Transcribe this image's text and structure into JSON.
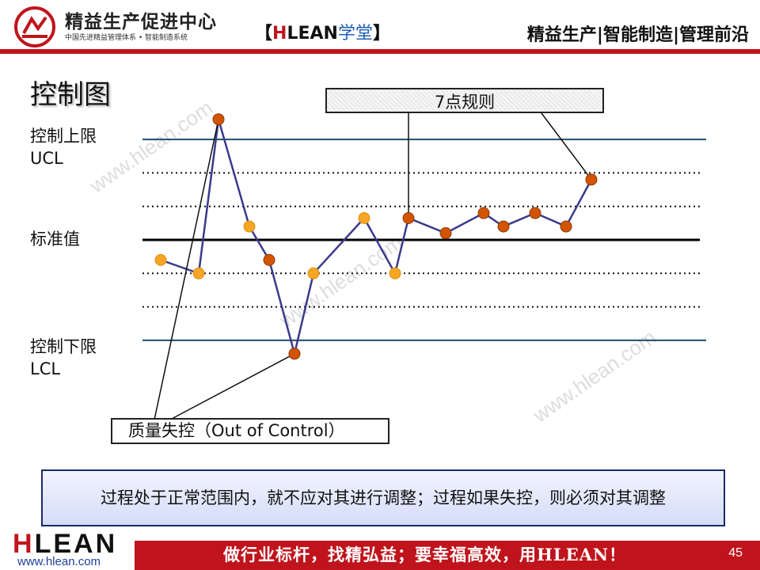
{
  "header": {
    "brand_name": "精益生产促进中心",
    "brand_sub": "中国先进精益管理体系 • 智能制造系统",
    "course_tag_open": "【",
    "course_tag_h": "H",
    "course_tag_lean": "LEAN",
    "course_tag_xt": "学堂",
    "course_tag_close": "】",
    "right_text": "精益生产|智能制造|管理前沿"
  },
  "title": "控制图",
  "labels": {
    "ucl_cn": "控制上限",
    "ucl_en": "UCL",
    "center": "标准值",
    "lcl_cn": "控制下限",
    "lcl_en": "LCL"
  },
  "callouts": {
    "seven_point_rule": "7点规则",
    "out_of_control": "质量失控（Out of Control）"
  },
  "summary": "过程处于正常范围内，就不应对其进行调整；过程如果失控，则必须对其调整",
  "watermark": "www.hlean.com",
  "footer": {
    "logo_h": "H",
    "logo_rest": "LEAN",
    "url": "www.hlean.com",
    "slogan": "做行业标杆，找精弘益；要幸福高效，用HLEAN！",
    "page_number": "45"
  },
  "colors": {
    "accent_red": "#c0141c",
    "control_line": "#1f4e6b",
    "series_line": "#3a3a8c",
    "point_orange": "#f5a623",
    "point_dark_orange": "#d35400"
  },
  "chart_data": {
    "type": "line",
    "title": "",
    "xlabel": "",
    "ylabel": "",
    "ylim": [
      -4,
      4
    ],
    "control_lines": [
      {
        "name": "UCL",
        "value": 3
      },
      {
        "name": "center",
        "value": 0
      },
      {
        "name": "LCL",
        "value": -3
      }
    ],
    "zone_lines": [
      2,
      1,
      -1,
      -2
    ],
    "series": [
      {
        "values": [
          -0.6,
          -1.0,
          3.6,
          0.4,
          -0.6,
          -3.4,
          -1.0,
          0.65,
          -1.0,
          0.65,
          0.2,
          0.8,
          0.4,
          0.8,
          0.4,
          1.8
        ],
        "point_colors": [
          "orange",
          "orange",
          "dark",
          "orange",
          "dark",
          "dark",
          "orange",
          "orange",
          "orange",
          "dark",
          "dark",
          "dark",
          "dark",
          "dark",
          "dark",
          "dark"
        ]
      }
    ]
  }
}
